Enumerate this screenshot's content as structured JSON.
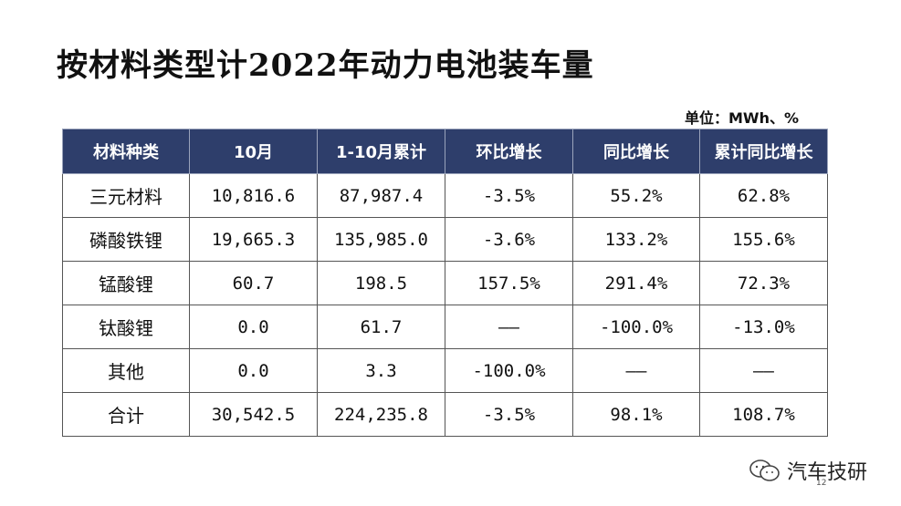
{
  "title": "按材料类型计2022年动力电池装车量",
  "unit": "单位：MWh、%",
  "table": {
    "headers": [
      "材料种类",
      "10月",
      "1-10月累计",
      "环比增长",
      "同比增长",
      "累计同比增长"
    ],
    "rows": [
      [
        "三元材料",
        "10,816.6",
        "87,987.4",
        "-3.5%",
        "55.2%",
        "62.8%"
      ],
      [
        "磷酸铁锂",
        "19,665.3",
        "135,985.0",
        "-3.6%",
        "133.2%",
        "155.6%"
      ],
      [
        "锰酸锂",
        "60.7",
        "198.5",
        "157.5%",
        "291.4%",
        "72.3%"
      ],
      [
        "钛酸锂",
        "0.0",
        "61.7",
        "——",
        "-100.0%",
        "-13.0%"
      ],
      [
        "其他",
        "0.0",
        "3.3",
        "-100.0%",
        "——",
        "——"
      ],
      [
        "合计",
        "30,542.5",
        "224,235.8",
        "-3.5%",
        "98.1%",
        "108.7%"
      ]
    ]
  },
  "watermark": {
    "text": "汽车技研",
    "icon": "wechat-icon"
  },
  "page_number": "12"
}
